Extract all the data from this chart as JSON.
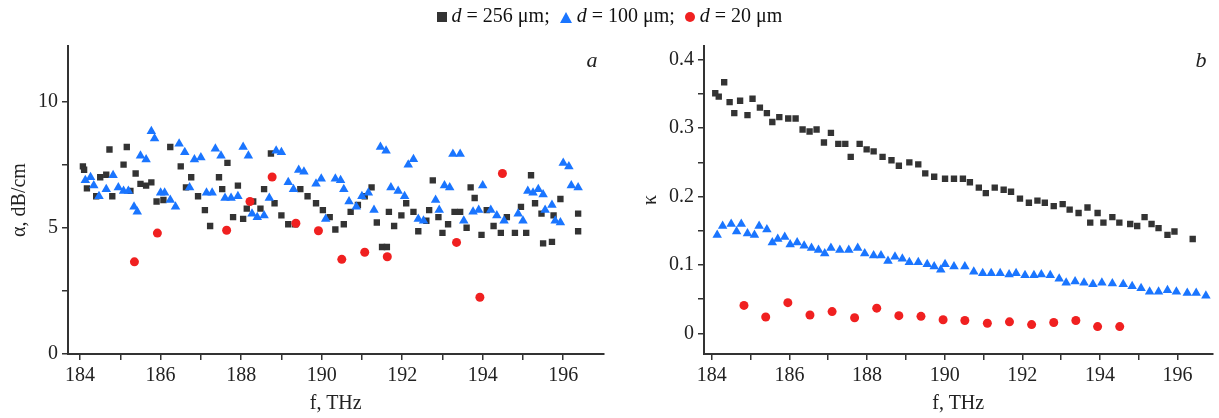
{
  "chart_data": [
    {
      "type": "scatter",
      "xlabel": "f, THz",
      "ylabel": "α, dB/cm",
      "xlim": [
        183.7,
        197
      ],
      "ylim": [
        0,
        12.2
      ],
      "xticks": [
        184,
        {
          "value": 185,
          "label": null
        },
        186,
        {
          "value": 187,
          "label": null
        },
        188,
        {
          "value": 189,
          "label": null
        },
        190,
        {
          "value": 191,
          "label": null
        },
        192,
        {
          "value": 193,
          "label": null
        },
        194,
        {
          "value": 195,
          "label": null
        },
        196
      ],
      "yticks": [
        0,
        {
          "value": 2.5,
          "label": null
        },
        5,
        {
          "value": 7.5,
          "label": null
        },
        10
      ],
      "grid": false,
      "legend": "top",
      "annotations": [
        "a"
      ],
      "series": [
        {
          "name": "d = 256 μm;",
          "color": "#333333",
          "marker": "square",
          "x": [
            184.07,
            184.1,
            184.17,
            184.4,
            184.5,
            184.65,
            184.73,
            184.8,
            185.08,
            185.16,
            185.25,
            185.38,
            185.5,
            185.64,
            185.77,
            185.9,
            186.07,
            186.24,
            186.5,
            186.63,
            186.76,
            186.93,
            187.1,
            187.23,
            187.45,
            187.53,
            187.66,
            187.8,
            187.92,
            188.05,
            188.14,
            188.3,
            188.48,
            188.57,
            188.74,
            188.83,
            189.0,
            189.17,
            189.34,
            189.47,
            189.65,
            189.86,
            190.03,
            190.2,
            190.34,
            190.55,
            190.72,
            190.9,
            191.07,
            191.24,
            191.37,
            191.5,
            191.62,
            191.67,
            191.8,
            191.98,
            192.1,
            192.28,
            192.4,
            192.6,
            192.67,
            192.76,
            192.9,
            193.0,
            193.14,
            193.3,
            193.44,
            193.6,
            193.7,
            193.8,
            193.97,
            194.1,
            194.27,
            194.45,
            194.6,
            194.8,
            194.95,
            195.08,
            195.2,
            195.3,
            195.46,
            195.5,
            195.72,
            195.76,
            195.93,
            196.37,
            196.37
          ],
          "values": [
            7.43,
            7.3,
            6.56,
            6.25,
            7.0,
            7.1,
            8.1,
            6.25,
            7.5,
            8.2,
            6.46,
            7.15,
            6.74,
            6.67,
            6.8,
            6.04,
            6.1,
            8.2,
            7.43,
            6.6,
            7.0,
            6.25,
            5.7,
            5.07,
            7.0,
            6.53,
            7.57,
            5.42,
            6.67,
            5.35,
            5.76,
            6.04,
            5.76,
            6.53,
            7.94,
            5.97,
            5.49,
            5.14,
            5.14,
            6.53,
            6.25,
            5.97,
            5.7,
            5.42,
            4.93,
            5.14,
            5.63,
            5.9,
            6.25,
            6.6,
            5.21,
            4.24,
            4.24,
            5.63,
            5.07,
            5.49,
            5.97,
            5.63,
            4.86,
            5.28,
            5.7,
            6.88,
            5.42,
            4.8,
            5.14,
            5.63,
            5.63,
            5.0,
            6.6,
            6.18,
            4.72,
            5.7,
            5.07,
            4.8,
            5.42,
            4.8,
            5.83,
            4.8,
            7.08,
            5.97,
            5.56,
            4.38,
            4.44,
            5.49,
            6.14,
            5.56,
            4.86
          ]
        },
        {
          "name": "d = 100 μm;",
          "color": "#1a75ff",
          "marker": "triangle",
          "x": [
            184.13,
            184.26,
            184.34,
            184.47,
            184.65,
            184.82,
            184.95,
            185.08,
            185.2,
            185.34,
            185.42,
            185.5,
            185.64,
            185.77,
            185.85,
            186.0,
            186.1,
            186.24,
            186.37,
            186.46,
            186.6,
            186.72,
            186.84,
            187.0,
            187.14,
            187.28,
            187.36,
            187.5,
            187.6,
            187.75,
            187.92,
            188.05,
            188.18,
            188.27,
            188.4,
            188.57,
            188.7,
            188.87,
            189.0,
            189.17,
            189.3,
            189.43,
            189.56,
            189.86,
            189.99,
            190.1,
            190.34,
            190.47,
            190.55,
            190.68,
            190.86,
            191.0,
            191.16,
            191.3,
            191.46,
            191.6,
            191.72,
            191.9,
            192.06,
            192.15,
            192.28,
            192.4,
            192.53,
            192.83,
            192.92,
            193.05,
            193.18,
            193.26,
            193.44,
            193.53,
            193.76,
            193.9,
            194.0,
            194.2,
            194.35,
            194.53,
            194.88,
            195.0,
            195.12,
            195.25,
            195.38,
            195.5,
            195.55,
            195.72,
            195.8,
            195.93,
            196.0,
            196.14,
            196.2,
            196.37
          ],
          "values": [
            6.88,
            7.0,
            6.67,
            6.25,
            6.53,
            7.08,
            6.6,
            6.46,
            6.46,
            5.83,
            5.63,
            7.85,
            7.7,
            8.82,
            8.54,
            6.39,
            6.39,
            6.1,
            5.83,
            8.33,
            7.99,
            6.6,
            7.7,
            7.78,
            6.39,
            6.39,
            8.13,
            7.85,
            6.18,
            6.18,
            6.25,
            8.2,
            7.85,
            5.56,
            5.42,
            5.49,
            6.18,
            8.05,
            7.99,
            6.8,
            6.53,
            7.29,
            7.22,
            6.74,
            6.94,
            5.35,
            6.94,
            6.88,
            6.53,
            6.04,
            5.83,
            6.25,
            6.39,
            5.7,
            8.2,
            8.05,
            6.6,
            6.46,
            6.25,
            7.5,
            7.71,
            5.35,
            5.28,
            6.1,
            5.7,
            6.67,
            6.6,
            7.92,
            7.92,
            5.28,
            5.63,
            5.7,
            6.67,
            5.7,
            5.49,
            5.28,
            5.56,
            5.28,
            6.46,
            6.39,
            6.53,
            6.32,
            5.7,
            5.9,
            5.28,
            5.21,
            7.57,
            7.43,
            6.67,
            6.6
          ]
        },
        {
          "name": "d = 20 μm",
          "color": "#f02020",
          "marker": "circle",
          "x": [
            185.35,
            185.92,
            187.64,
            188.22,
            188.77,
            189.36,
            189.92,
            190.5,
            191.07,
            191.63,
            193.35,
            193.93,
            194.49
          ],
          "values": [
            3.65,
            4.79,
            4.9,
            6.04,
            7.01,
            5.18,
            4.88,
            3.75,
            4.03,
            3.85,
            4.42,
            2.25,
            7.15
          ]
        }
      ]
    },
    {
      "type": "scatter",
      "xlabel": "f, THz",
      "ylabel": "κ",
      "xlim": [
        183.8,
        196.9
      ],
      "ylim": [
        -0.03,
        0.42
      ],
      "xticks": [
        184,
        {
          "value": 185,
          "label": null
        },
        186,
        {
          "value": 187,
          "label": null
        },
        188,
        {
          "value": 189,
          "label": null
        },
        190,
        {
          "value": 191,
          "label": null
        },
        192,
        {
          "value": 193,
          "label": null
        },
        194,
        {
          "value": 195,
          "label": null
        },
        196
      ],
      "yticks": [
        0,
        {
          "value": 0.05,
          "label": null
        },
        0.1,
        {
          "value": 0.15,
          "label": null
        },
        0.2,
        {
          "value": 0.25,
          "label": null
        },
        0.3,
        {
          "value": 0.35,
          "label": null
        },
        0.4
      ],
      "grid": false,
      "annotations": [
        "b"
      ],
      "series": [
        {
          "color": "#333333",
          "marker": "square",
          "x": [
            184.09,
            184.18,
            184.32,
            184.46,
            184.58,
            184.73,
            184.92,
            185.05,
            185.24,
            185.42,
            185.56,
            185.74,
            185.97,
            186.16,
            186.34,
            186.52,
            186.7,
            186.89,
            187.07,
            187.26,
            187.44,
            187.58,
            187.81,
            187.99,
            188.17,
            188.4,
            188.63,
            188.82,
            189.09,
            189.32,
            189.5,
            189.73,
            190.01,
            190.24,
            190.47,
            190.65,
            190.88,
            191.06,
            191.29,
            191.52,
            191.71,
            191.94,
            192.17,
            192.39,
            192.58,
            192.81,
            193.04,
            193.22,
            193.45,
            193.68,
            193.75,
            193.94,
            194.09,
            194.32,
            194.5,
            194.78,
            194.96,
            195.15,
            195.33,
            195.51,
            195.74,
            195.92,
            196.39
          ],
          "values": [
            0.351,
            0.346,
            0.367,
            0.338,
            0.322,
            0.34,
            0.319,
            0.343,
            0.33,
            0.322,
            0.309,
            0.316,
            0.314,
            0.314,
            0.298,
            0.295,
            0.298,
            0.279,
            0.293,
            0.277,
            0.277,
            0.258,
            0.277,
            0.269,
            0.266,
            0.258,
            0.253,
            0.245,
            0.25,
            0.247,
            0.234,
            0.229,
            0.226,
            0.226,
            0.226,
            0.221,
            0.213,
            0.205,
            0.213,
            0.21,
            0.207,
            0.197,
            0.191,
            0.194,
            0.191,
            0.186,
            0.189,
            0.181,
            0.176,
            0.184,
            0.162,
            0.176,
            0.162,
            0.17,
            0.162,
            0.16,
            0.157,
            0.17,
            0.16,
            0.154,
            0.144,
            0.149,
            0.138
          ]
        },
        {
          "color": "#1a75ff",
          "marker": "triangle",
          "x": [
            184.14,
            184.28,
            184.5,
            184.64,
            184.76,
            184.92,
            185.1,
            185.22,
            185.42,
            185.56,
            185.7,
            185.88,
            186.02,
            186.2,
            186.38,
            186.57,
            186.75,
            186.91,
            187.07,
            187.3,
            187.53,
            187.76,
            187.94,
            188.17,
            188.36,
            188.54,
            188.72,
            188.91,
            189.09,
            189.32,
            189.55,
            189.73,
            189.9,
            190.01,
            190.24,
            190.52,
            190.75,
            190.98,
            191.2,
            191.43,
            191.66,
            191.84,
            192.07,
            192.3,
            192.49,
            192.72,
            192.95,
            193.13,
            193.36,
            193.59,
            193.82,
            194.05,
            194.32,
            194.6,
            194.83,
            195.06,
            195.28,
            195.51,
            195.74,
            195.97,
            196.25,
            196.48,
            196.73
          ],
          "values": [
            0.144,
            0.157,
            0.16,
            0.149,
            0.16,
            0.146,
            0.144,
            0.157,
            0.152,
            0.133,
            0.138,
            0.141,
            0.13,
            0.133,
            0.128,
            0.125,
            0.122,
            0.117,
            0.125,
            0.122,
            0.122,
            0.125,
            0.117,
            0.114,
            0.114,
            0.106,
            0.112,
            0.109,
            0.104,
            0.104,
            0.101,
            0.098,
            0.093,
            0.101,
            0.098,
            0.098,
            0.09,
            0.088,
            0.088,
            0.088,
            0.086,
            0.088,
            0.085,
            0.085,
            0.086,
            0.085,
            0.08,
            0.074,
            0.076,
            0.074,
            0.072,
            0.074,
            0.073,
            0.072,
            0.069,
            0.066,
            0.061,
            0.061,
            0.063,
            0.061,
            0.059,
            0.059,
            0.055
          ]
        },
        {
          "color": "#f02020",
          "marker": "circle",
          "x": [
            184.83,
            185.39,
            185.96,
            186.53,
            187.1,
            187.68,
            188.25,
            188.82,
            189.39,
            189.96,
            190.52,
            191.1,
            191.67,
            192.24,
            192.81,
            193.38,
            193.94,
            194.51
          ],
          "values": [
            0.041,
            0.024,
            0.045,
            0.027,
            0.032,
            0.023,
            0.037,
            0.026,
            0.025,
            0.02,
            0.019,
            0.015,
            0.017,
            0.013,
            0.016,
            0.019,
            0.01,
            0.01
          ]
        }
      ]
    }
  ]
}
